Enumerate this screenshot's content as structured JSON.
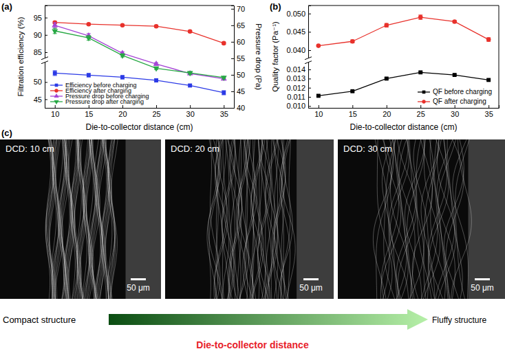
{
  "chart_data": [
    {
      "type": "line",
      "title": "(a)",
      "xlabel": "Die-to-collector distance (cm)",
      "ylabel": "Filtration efficiency (%)",
      "y2label": "Pressure drop (Pa)",
      "x": [
        10,
        15,
        20,
        25,
        30,
        35
      ],
      "xlim": [
        8.5,
        36.5
      ],
      "xticks": [
        10,
        15,
        20,
        25,
        30,
        35
      ],
      "ylim": [
        42.5,
        98.5
      ],
      "ybreak": [
        55,
        84
      ],
      "yticks": [
        45,
        50,
        85,
        90,
        95
      ],
      "y2lim": [
        40,
        71
      ],
      "y2ticks": [
        40,
        45,
        50,
        55,
        60,
        65,
        70
      ],
      "grid": false,
      "legend": "lower left",
      "series": [
        {
          "name": "Efficiency before charging",
          "color": "#2b3ae6",
          "marker": "square",
          "values": [
            52.6,
            52.0,
            51.4,
            50.5,
            49.0,
            46.9
          ],
          "errors": [
            0.7,
            0.5,
            0.5,
            0.5,
            0.4,
            0.6
          ]
        },
        {
          "name": "Efficiency after charging",
          "color": "#e8312b",
          "marker": "circle",
          "values": [
            93.6,
            93.1,
            92.8,
            92.5,
            91.0,
            87.6
          ],
          "errors": [
            0.3,
            0.2,
            0.2,
            0.3,
            0.3,
            0.3
          ]
        },
        {
          "name": "Pressure drop before charging",
          "color": "#a545d5",
          "marker": "triangle",
          "axis": "y2",
          "values": [
            65.0,
            61.8,
            56.5,
            53.3,
            50.4,
            48.8
          ],
          "errors": [
            0.8,
            0.7,
            0.5,
            0.4,
            0.4,
            0.4
          ]
        },
        {
          "name": "Pressure drop after charging",
          "color": "#27a844",
          "marker": "triangle-down",
          "axis": "y2",
          "values": [
            63.3,
            61.2,
            55.9,
            52.0,
            50.6,
            49.2
          ],
          "errors": [
            0.8,
            0.7,
            0.5,
            0.4,
            0.4,
            0.3
          ]
        }
      ]
    },
    {
      "type": "line",
      "title": "(b)",
      "xlabel": "Die-to-collector distance (cm)",
      "ylabel": "Quality factor (Pa⁻¹)",
      "x": [
        10,
        15,
        20,
        25,
        30,
        35
      ],
      "xlim": [
        8.5,
        36.5
      ],
      "xticks": [
        10,
        15,
        20,
        25,
        30,
        35
      ],
      "ylim": [
        0.0098,
        0.0522
      ],
      "ybreak": [
        0.0145,
        0.0385
      ],
      "yticks": [
        {
          "value": 0.01,
          "label": "0.010"
        },
        0.011,
        0.012,
        0.013,
        0.014,
        {
          "value": 0.04,
          "label": "0.040"
        },
        0.045,
        {
          "value": 0.05,
          "label": "0.050"
        }
      ],
      "grid": false,
      "legend": "lower right",
      "series": [
        {
          "name": "QF before charging",
          "color": "#000000",
          "marker": "square",
          "values": [
            0.01112,
            0.01162,
            0.013,
            0.01368,
            0.0134,
            0.01285
          ],
          "errors": [
            0.0001,
            0.0001,
            0.0001,
            8e-05,
            8e-05,
            0.0001
          ]
        },
        {
          "name": "QF after charging",
          "color": "#e8312b",
          "marker": "circle",
          "values": [
            0.0412,
            0.0424,
            0.0468,
            0.049,
            0.0478,
            0.0429
          ],
          "errors": [
            0.0002,
            0.0004,
            0.0005,
            0.0006,
            0.0003,
            0.0005
          ]
        }
      ]
    }
  ],
  "panel_c": {
    "label": "(c)",
    "images": [
      {
        "label": "DCD: 10 cm",
        "scale_bar": "50 μm"
      },
      {
        "label": "DCD: 20 cm",
        "scale_bar": "50 μm"
      },
      {
        "label": "DCD: 30 cm",
        "scale_bar": "50 μm"
      }
    ],
    "arrow": {
      "start": "Compact structure",
      "end": "Fluffy structure"
    },
    "caption": "Die-to-collector distance"
  }
}
